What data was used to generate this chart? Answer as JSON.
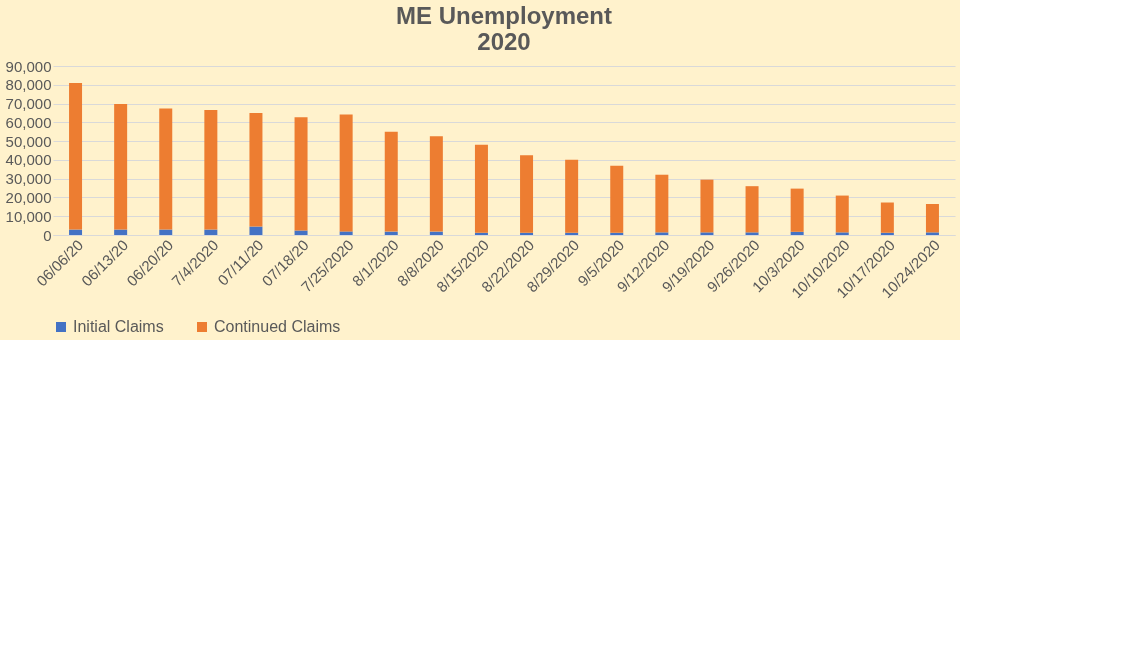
{
  "chart_data": {
    "type": "bar",
    "title": [
      "ME Unemployment",
      "2020"
    ],
    "stacked": true,
    "categories": [
      "06/06/20",
      "06/13/20",
      "06/20/20",
      "7/4/2020",
      "07/11/20",
      "07/18/20",
      "7/25/2020",
      "8/1/2020",
      "8/8/2020",
      "8/15/2020",
      "8/22/2020",
      "8/29/2020",
      "9/5/2020",
      "9/12/2020",
      "9/19/2020",
      "9/26/2020",
      "10/3/2020",
      "10/10/2020",
      "10/17/2020",
      "10/24/2020"
    ],
    "series": [
      {
        "name": "Initial Claims",
        "color": "#4472c4",
        "values": [
          2900,
          2900,
          2900,
          2900,
          4500,
          2400,
          1900,
          1800,
          1800,
          1200,
          1200,
          1200,
          1200,
          1400,
          1400,
          1400,
          1700,
          1400,
          1200,
          1400
        ]
      },
      {
        "name": "Continued Claims",
        "color": "#ed7d31",
        "values": [
          78100,
          66900,
          64500,
          63700,
          60500,
          60300,
          62300,
          53200,
          50800,
          46800,
          41300,
          38900,
          35700,
          30700,
          28100,
          24600,
          23000,
          19600,
          16100,
          15100
        ]
      }
    ],
    "ylim": [
      0,
      90000
    ],
    "yticks": [
      0,
      {
        "value": 10000,
        "label": "10,000"
      },
      {
        "value": 20000,
        "label": "20,000"
      },
      {
        "value": 30000,
        "label": "30,000"
      },
      {
        "value": 40000,
        "label": "40,000"
      },
      {
        "value": 50000,
        "label": "50,000"
      },
      {
        "value": 60000,
        "label": "60,000"
      },
      {
        "value": 70000,
        "label": "70,000"
      },
      {
        "value": 80000,
        "label": "80,000"
      },
      {
        "value": 90000,
        "label": "90,000"
      }
    ],
    "grid": "y",
    "legend": "bottom"
  }
}
